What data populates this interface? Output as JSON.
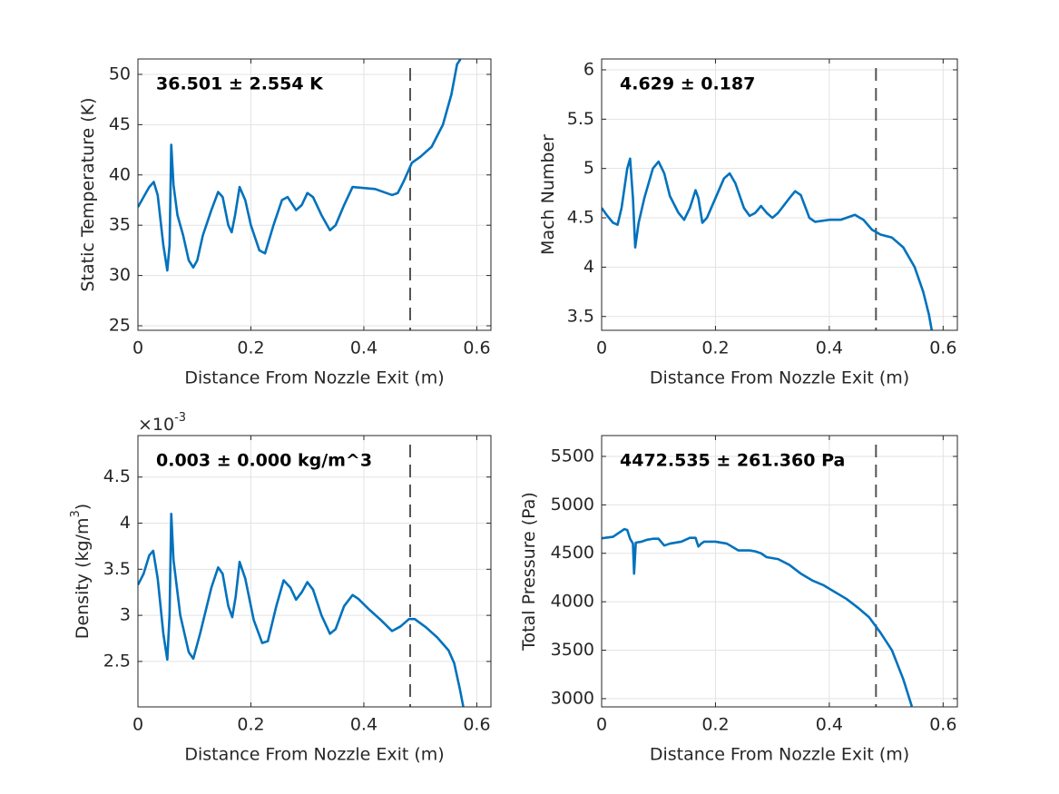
{
  "chart_data": [
    {
      "type": "line",
      "xlabel": "Distance From Nozzle Exit (m)",
      "ylabel": [
        "Static Temperature (K)"
      ],
      "annotation": "36.501 ± 2.554 K",
      "xlim": [
        0,
        0.625
      ],
      "xticks": [
        0,
        0.2,
        0.4,
        0.6
      ],
      "ylim": [
        24.55,
        51.53
      ],
      "yticks": [
        25,
        30,
        35,
        40,
        45,
        50
      ],
      "grid": true,
      "color": "#0072BD",
      "vline": 0.482,
      "vline_color": "#555555",
      "x": [
        0,
        0.01,
        0.02,
        0.028,
        0.035,
        0.045,
        0.052,
        0.056,
        0.059,
        0.063,
        0.07,
        0.08,
        0.09,
        0.098,
        0.105,
        0.115,
        0.13,
        0.142,
        0.15,
        0.16,
        0.166,
        0.172,
        0.18,
        0.19,
        0.2,
        0.215,
        0.225,
        0.24,
        0.255,
        0.265,
        0.28,
        0.29,
        0.3,
        0.31,
        0.325,
        0.34,
        0.35,
        0.365,
        0.38,
        0.4,
        0.42,
        0.45,
        0.46,
        0.47,
        0.485,
        0.5,
        0.52,
        0.54,
        0.555,
        0.565,
        0.571
      ],
      "values": [
        36.8,
        37.8,
        38.8,
        39.3,
        38,
        33,
        30.5,
        33,
        43,
        39,
        36,
        34,
        31.5,
        30.8,
        31.5,
        34,
        36.5,
        38.3,
        37.8,
        35,
        34.3,
        36,
        38.8,
        37.5,
        35,
        32.5,
        32.2,
        35,
        37.5,
        37.8,
        36.5,
        37,
        38.2,
        37.8,
        36,
        34.5,
        35,
        37,
        38.8,
        38.7,
        38.6,
        38,
        38.2,
        39.3,
        41.2,
        41.8,
        42.8,
        45,
        48,
        51,
        51.5
      ]
    },
    {
      "type": "line",
      "xlabel": "Distance From Nozzle Exit (m)",
      "ylabel": [
        "Mach Number"
      ],
      "annotation": "4.629 ± 0.187",
      "xlim": [
        0,
        0.625
      ],
      "xticks": [
        0,
        0.2,
        0.4,
        0.6
      ],
      "ylim": [
        3.36,
        6.11
      ],
      "yticks": [
        3.5,
        4,
        4.5,
        5,
        5.5,
        6
      ],
      "grid": true,
      "color": "#0072BD",
      "vline": 0.482,
      "vline_color": "#555555",
      "x": [
        0,
        0.01,
        0.02,
        0.028,
        0.035,
        0.045,
        0.05,
        0.055,
        0.059,
        0.065,
        0.075,
        0.09,
        0.1,
        0.11,
        0.12,
        0.135,
        0.145,
        0.155,
        0.165,
        0.17,
        0.177,
        0.185,
        0.2,
        0.215,
        0.225,
        0.235,
        0.25,
        0.26,
        0.27,
        0.28,
        0.29,
        0.3,
        0.31,
        0.33,
        0.34,
        0.35,
        0.365,
        0.375,
        0.4,
        0.42,
        0.445,
        0.46,
        0.475,
        0.49,
        0.51,
        0.53,
        0.55,
        0.565,
        0.575,
        0.58
      ],
      "values": [
        4.6,
        4.52,
        4.45,
        4.43,
        4.6,
        5.0,
        5.1,
        4.7,
        4.2,
        4.45,
        4.7,
        5.0,
        5.07,
        4.95,
        4.72,
        4.55,
        4.48,
        4.6,
        4.78,
        4.7,
        4.45,
        4.5,
        4.7,
        4.9,
        4.95,
        4.85,
        4.6,
        4.52,
        4.55,
        4.62,
        4.55,
        4.5,
        4.55,
        4.7,
        4.77,
        4.73,
        4.5,
        4.46,
        4.48,
        4.48,
        4.53,
        4.48,
        4.38,
        4.33,
        4.3,
        4.2,
        4.0,
        3.75,
        3.52,
        3.36
      ]
    },
    {
      "type": "line",
      "xlabel": "Distance From Nozzle Exit (m)",
      "ylabel": [
        "Density (kg/m",
        "3",
        ")"
      ],
      "y_exponent": [
        "×10",
        "-3"
      ],
      "annotation": "0.003 ± 0.000 kg/m^3",
      "xlim": [
        0,
        0.625
      ],
      "xticks": [
        0,
        0.2,
        0.4,
        0.6
      ],
      "ylim": [
        2.007,
        4.95
      ],
      "yticks": [
        2.5,
        3,
        3.5,
        4,
        4.5
      ],
      "grid": true,
      "color": "#0072BD",
      "vline": 0.482,
      "vline_color": "#555555",
      "x": [
        0,
        0.01,
        0.02,
        0.027,
        0.035,
        0.045,
        0.052,
        0.056,
        0.059,
        0.063,
        0.075,
        0.09,
        0.098,
        0.11,
        0.13,
        0.142,
        0.15,
        0.16,
        0.167,
        0.173,
        0.18,
        0.19,
        0.205,
        0.22,
        0.23,
        0.245,
        0.258,
        0.27,
        0.28,
        0.29,
        0.3,
        0.31,
        0.325,
        0.34,
        0.35,
        0.365,
        0.38,
        0.39,
        0.41,
        0.43,
        0.45,
        0.465,
        0.48,
        0.49,
        0.51,
        0.53,
        0.55,
        0.56,
        0.57,
        0.576
      ],
      "values": [
        3.33,
        3.45,
        3.65,
        3.7,
        3.4,
        2.8,
        2.52,
        3.0,
        4.1,
        3.6,
        3.0,
        2.6,
        2.53,
        2.8,
        3.3,
        3.52,
        3.45,
        3.1,
        2.98,
        3.2,
        3.58,
        3.4,
        2.95,
        2.7,
        2.72,
        3.1,
        3.38,
        3.3,
        3.17,
        3.25,
        3.36,
        3.28,
        3.0,
        2.8,
        2.85,
        3.1,
        3.22,
        3.18,
        3.06,
        2.95,
        2.83,
        2.88,
        2.96,
        2.96,
        2.87,
        2.76,
        2.62,
        2.48,
        2.2,
        2.01
      ]
    },
    {
      "type": "line",
      "xlabel": "Distance From Nozzle Exit (m)",
      "ylabel": [
        "Total Pressure (Pa)"
      ],
      "annotation": "4472.535 ± 261.360 Pa",
      "xlim": [
        0,
        0.625
      ],
      "xticks": [
        0,
        0.2,
        0.4,
        0.6
      ],
      "ylim": [
        2915,
        5715
      ],
      "yticks": [
        3000,
        3500,
        4000,
        4500,
        5000,
        5500
      ],
      "grid": true,
      "color": "#0072BD",
      "vline": 0.482,
      "vline_color": "#555555",
      "x": [
        0,
        0.02,
        0.035,
        0.04,
        0.045,
        0.05,
        0.055,
        0.057,
        0.06,
        0.07,
        0.08,
        0.09,
        0.1,
        0.11,
        0.12,
        0.14,
        0.155,
        0.165,
        0.17,
        0.175,
        0.18,
        0.2,
        0.22,
        0.24,
        0.26,
        0.27,
        0.28,
        0.29,
        0.31,
        0.33,
        0.35,
        0.37,
        0.39,
        0.41,
        0.43,
        0.45,
        0.47,
        0.49,
        0.51,
        0.53,
        0.545
      ],
      "values": [
        4655,
        4670,
        4730,
        4750,
        4740,
        4650,
        4600,
        4290,
        4610,
        4620,
        4640,
        4650,
        4650,
        4580,
        4600,
        4620,
        4660,
        4660,
        4570,
        4600,
        4620,
        4620,
        4600,
        4530,
        4530,
        4520,
        4500,
        4460,
        4440,
        4380,
        4290,
        4220,
        4170,
        4100,
        4030,
        3940,
        3840,
        3680,
        3500,
        3200,
        2920
      ]
    }
  ]
}
